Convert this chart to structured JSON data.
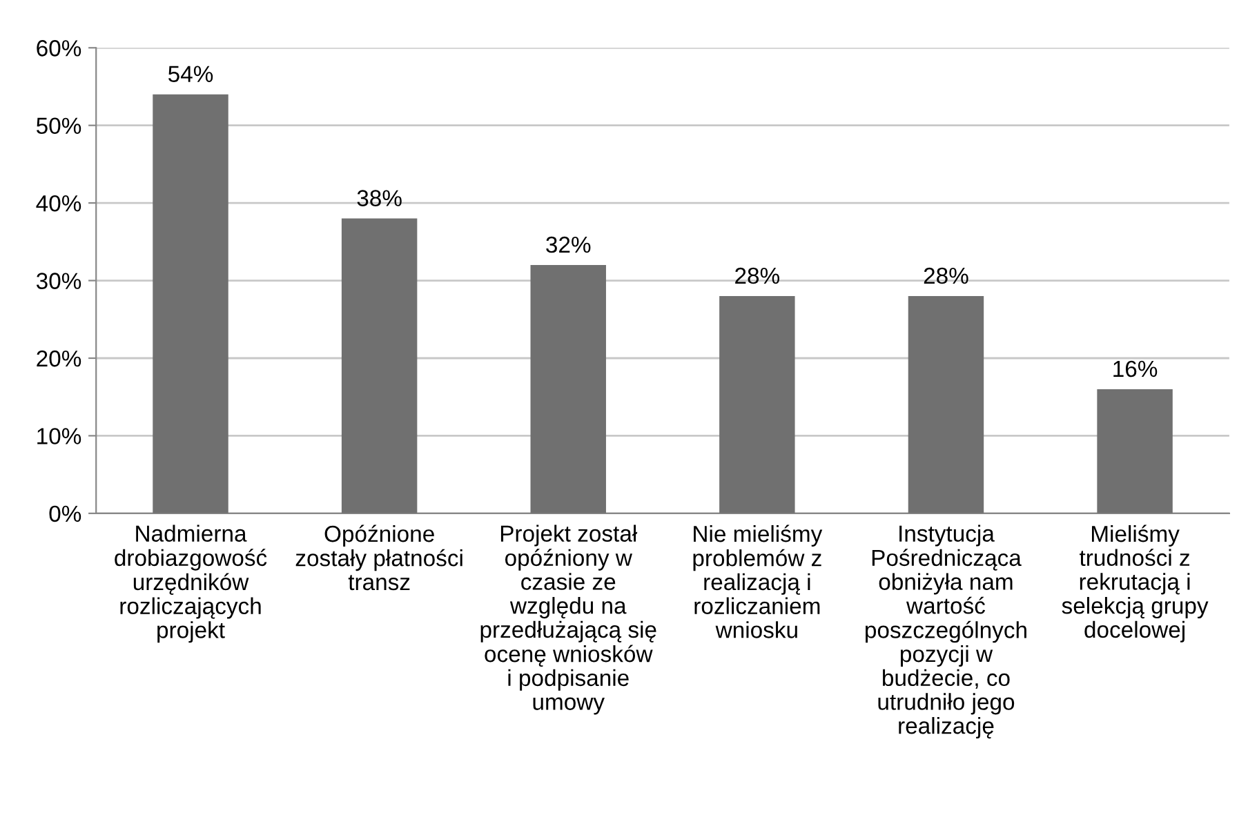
{
  "chart_data": {
    "type": "bar",
    "categories": [
      "Nadmierna\ndrobiazgowość\nurzędników\nrozliczających\nprojekt",
      "Opóźnione\nzostały płatności\ntransz",
      "Projekt został\nopóźniony w\nczasie ze\nwzględu na\nprzedłużającą się\nocenę wniosków\ni podpisanie\numowy",
      "Nie mieliśmy\nproblemów z\nrealizacją i\nrozliczaniem\nwniosku",
      "Instytucja\nPośrednicząca\nobniżyła nam\nwartość\nposzczególnych\npozycji w\nbudżecie, co\nutrudniło jego\nrealizację",
      "Mieliśmy\ntrudności z\nrekrutacją i\nselekcją grupy\ndocelowej"
    ],
    "values": [
      54,
      38,
      32,
      28,
      28,
      16
    ],
    "value_labels": [
      "54%",
      "38%",
      "32%",
      "28%",
      "28%",
      "16%"
    ],
    "color": "#707070",
    "ylim": [
      0,
      60
    ],
    "yticks": [
      {
        "value": 0,
        "label": "0%"
      },
      {
        "value": 10,
        "label": "10%"
      },
      {
        "value": 20,
        "label": "20%"
      },
      {
        "value": 30,
        "label": "30%"
      },
      {
        "value": 40,
        "label": "40%"
      },
      {
        "value": 50,
        "label": "50%"
      },
      {
        "value": 60,
        "label": "60%"
      }
    ],
    "grid": "y",
    "legend": false
  }
}
